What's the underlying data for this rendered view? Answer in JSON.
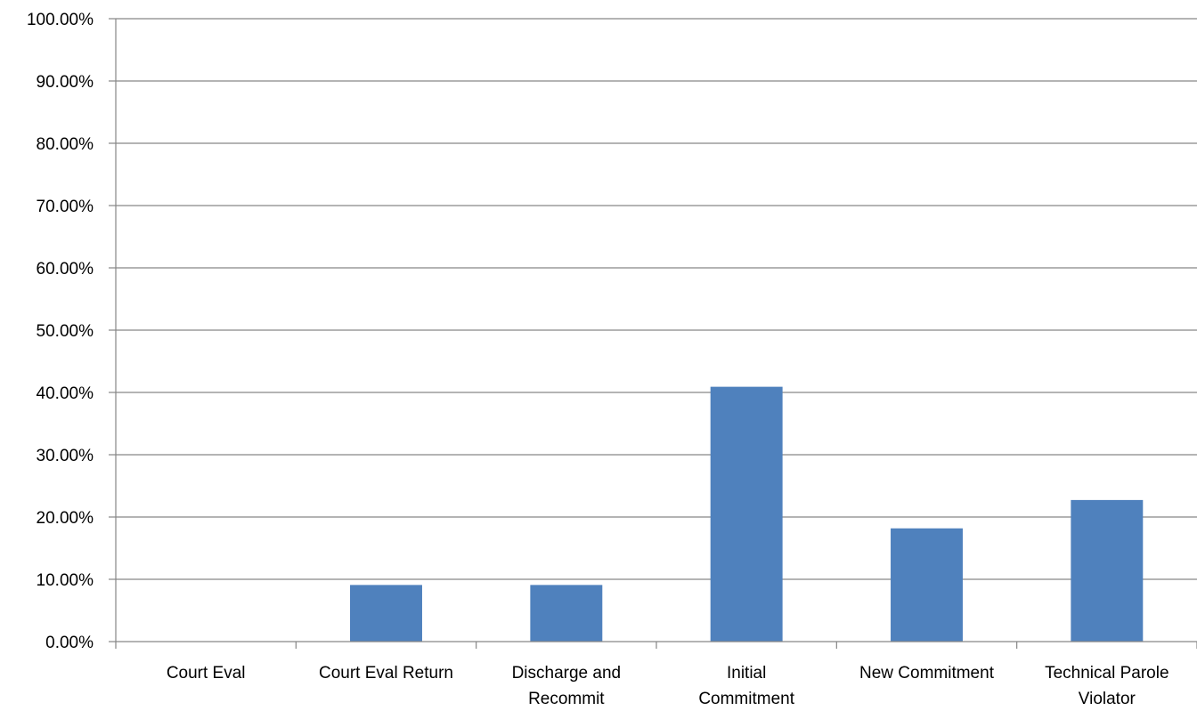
{
  "chart_data": {
    "type": "bar",
    "title": "",
    "xlabel": "",
    "ylabel": "",
    "categories": [
      [
        "Court Eval"
      ],
      [
        "Court Eval Return"
      ],
      [
        "Discharge and",
        "Recommit"
      ],
      [
        "Initial",
        "Commitment"
      ],
      [
        "New Commitment"
      ],
      [
        "Technical Parole",
        "Violator"
      ]
    ],
    "values": [
      0.0,
      9.09,
      9.09,
      40.91,
      18.18,
      22.73
    ],
    "ylim": [
      0,
      100
    ],
    "yticks": [
      "0.00%",
      "10.00%",
      "20.00%",
      "30.00%",
      "40.00%",
      "50.00%",
      "60.00%",
      "70.00%",
      "80.00%",
      "90.00%",
      "100.00%"
    ],
    "grid": true,
    "legend": "none",
    "colors": {
      "bar": "#4f81bd",
      "grid": "#868686",
      "axis": "#868686",
      "text": "#000000"
    }
  }
}
